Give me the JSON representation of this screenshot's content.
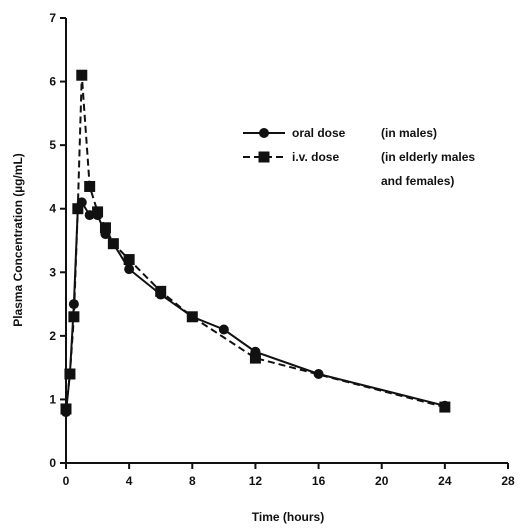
{
  "chart_data": {
    "type": "line",
    "xlabel": "Time (hours)",
    "ylabel": "Plasma Concentration (µg/mL)",
    "xlim": [
      0,
      28
    ],
    "ylim": [
      0,
      7
    ],
    "xticks": [
      0,
      4,
      8,
      12,
      16,
      20,
      24,
      28
    ],
    "yticks": [
      0,
      1,
      2,
      3,
      4,
      5,
      6,
      7
    ],
    "grid": false,
    "legend_position": "upper-right",
    "series": [
      {
        "name": "oral dose",
        "note": "(in males)",
        "marker": "circle",
        "line_style": "solid",
        "x": [
          0,
          0.25,
          0.5,
          0.75,
          1,
          1.5,
          2,
          2.5,
          3,
          4,
          6,
          8,
          10,
          12,
          16,
          24
        ],
        "y": [
          0.8,
          1.4,
          2.5,
          4.0,
          4.1,
          3.9,
          3.9,
          3.6,
          3.45,
          3.05,
          2.65,
          2.3,
          2.1,
          1.75,
          1.4,
          0.9
        ]
      },
      {
        "name": "i.v. dose",
        "note": "(in elderly males and females)",
        "marker": "square",
        "line_style": "dashed",
        "x": [
          0,
          0.25,
          0.5,
          0.75,
          1,
          1.5,
          2,
          2.5,
          3,
          4,
          6,
          8,
          12,
          24
        ],
        "y": [
          0.85,
          1.4,
          2.3,
          4.0,
          6.1,
          4.35,
          3.95,
          3.7,
          3.45,
          3.2,
          2.7,
          2.3,
          1.65,
          0.88
        ]
      }
    ]
  }
}
